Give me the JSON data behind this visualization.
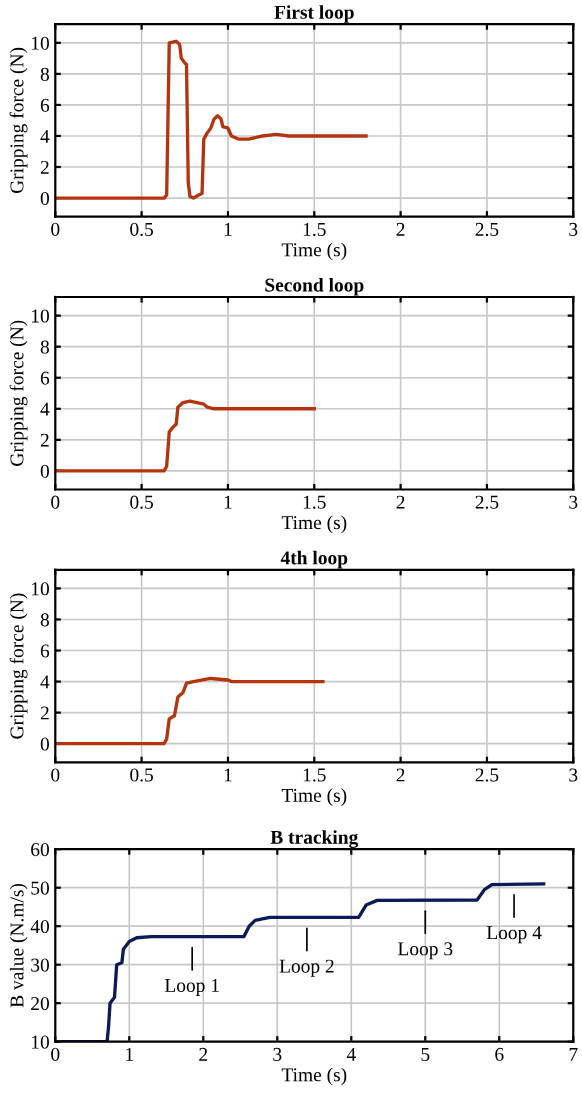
{
  "chart_data": [
    {
      "type": "line",
      "title": "First loop",
      "xlabel": "Time (s)",
      "ylabel": "Gripping force (N)",
      "xlim": [
        0,
        3
      ],
      "xticks": [
        0,
        0.5,
        1,
        1.5,
        2,
        2.5,
        3
      ],
      "ylim": [
        -1.2,
        11.2
      ],
      "yticks": [
        0,
        2,
        4,
        6,
        8,
        10
      ],
      "grid": true,
      "series": [
        {
          "color": "#b3340f",
          "x": [
            0,
            0.63,
            0.645,
            0.66,
            0.7,
            0.72,
            0.73,
            0.75,
            0.76,
            0.77,
            0.78,
            0.8,
            0.83,
            0.85,
            0.86,
            0.88,
            0.9,
            0.92,
            0.94,
            0.96,
            0.97,
            1.0,
            1.02,
            1.06,
            1.12,
            1.2,
            1.28,
            1.35,
            1.8
          ],
          "values": [
            0,
            0,
            0.2,
            10,
            10.1,
            9.9,
            9,
            8.7,
            8.6,
            1,
            0.1,
            0,
            0.2,
            0.3,
            3.8,
            4.2,
            4.5,
            5.1,
            5.3,
            5.1,
            4.6,
            4.5,
            4,
            3.8,
            3.8,
            4.0,
            4.1,
            4,
            4
          ]
        }
      ]
    },
    {
      "type": "line",
      "title": "Second loop",
      "xlabel": "Time (s)",
      "ylabel": "Gripping force (N)",
      "xlim": [
        0,
        3
      ],
      "xticks": [
        0,
        0.5,
        1,
        1.5,
        2,
        2.5,
        3
      ],
      "ylim": [
        -1.2,
        11.2
      ],
      "yticks": [
        0,
        2,
        4,
        6,
        8,
        10
      ],
      "grid": true,
      "series": [
        {
          "color": "#b3340f",
          "x": [
            0,
            0.63,
            0.645,
            0.66,
            0.68,
            0.7,
            0.71,
            0.74,
            0.78,
            0.82,
            0.86,
            0.88,
            0.92,
            1.5
          ],
          "values": [
            0,
            0,
            0.3,
            2.5,
            2.8,
            3.0,
            4.1,
            4.4,
            4.5,
            4.4,
            4.3,
            4.1,
            4.0,
            4.0
          ]
        }
      ]
    },
    {
      "type": "line",
      "title": "4th loop",
      "xlabel": "Time (s)",
      "ylabel": "Gripping force (N)",
      "xlim": [
        0,
        3
      ],
      "xticks": [
        0,
        0.5,
        1,
        1.5,
        2,
        2.5,
        3
      ],
      "ylim": [
        -1.2,
        11.2
      ],
      "yticks": [
        0,
        2,
        4,
        6,
        8,
        10
      ],
      "grid": true,
      "series": [
        {
          "color": "#b3340f",
          "x": [
            0,
            0.63,
            0.645,
            0.66,
            0.69,
            0.71,
            0.74,
            0.76,
            0.8,
            0.9,
            1.0,
            1.02,
            1.55
          ],
          "values": [
            0,
            0,
            0.3,
            1.6,
            1.8,
            3.0,
            3.3,
            3.9,
            4.0,
            4.2,
            4.1,
            4.0,
            4.0
          ]
        }
      ]
    },
    {
      "type": "line",
      "title": "B tracking",
      "xlabel": "Time (s)",
      "ylabel": "B value (N.m/s)",
      "xlim": [
        0,
        7
      ],
      "xticks": [
        0,
        1,
        2,
        3,
        4,
        5,
        6,
        7
      ],
      "ylim": [
        10,
        60
      ],
      "yticks": [
        10,
        20,
        30,
        40,
        50,
        60
      ],
      "grid": true,
      "series": [
        {
          "color": "#0c1a5c",
          "x": [
            0,
            0.7,
            0.72,
            0.74,
            0.78,
            0.8,
            0.83,
            0.9,
            0.92,
            1.0,
            1.1,
            1.3,
            2.55,
            2.62,
            2.7,
            2.9,
            4.1,
            4.2,
            4.35,
            5.7,
            5.8,
            5.9,
            6.6
          ],
          "values": [
            10,
            10,
            14,
            20,
            21,
            21.5,
            30,
            30.5,
            34,
            36,
            37,
            37.3,
            37.3,
            40,
            41.5,
            42.3,
            42.3,
            45.5,
            46.7,
            46.8,
            49.5,
            50.8,
            51
          ]
        }
      ],
      "annotations": [
        {
          "text": "Loop 1",
          "x": 1.85,
          "y": 37.3
        },
        {
          "text": "Loop 2",
          "x": 3.4,
          "y": 42.3
        },
        {
          "text": "Loop 3",
          "x": 5.0,
          "y": 46.8
        },
        {
          "text": "Loop 4",
          "x": 6.2,
          "y": 51
        }
      ]
    }
  ]
}
